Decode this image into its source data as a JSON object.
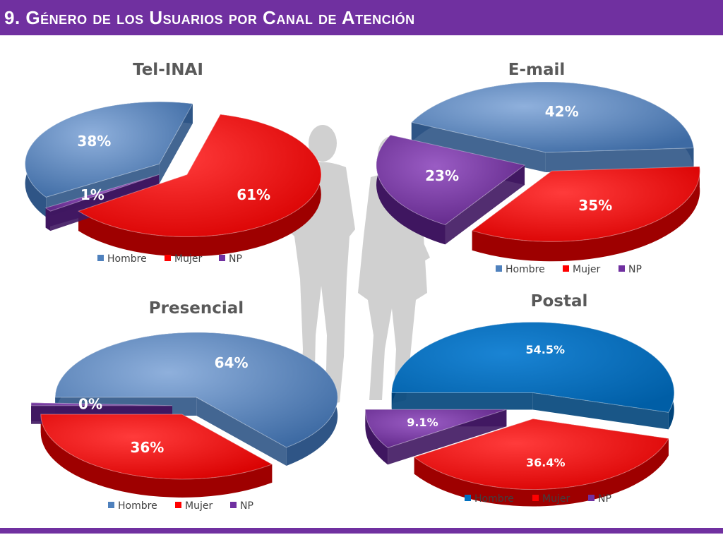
{
  "page": {
    "title": "9. Género de los Usuarios por Canal de Atención"
  },
  "colors": {
    "header": "#7030a0",
    "hombre": "#4f81bd",
    "hombre_postal": "#0070c0",
    "mujer": "#ff0000",
    "np": "#7030a0",
    "silhouette": "#c8c8c8"
  },
  "legend_labels": [
    "Hombre",
    "Mujer",
    "NP"
  ],
  "chart_data": [
    {
      "type": "pie",
      "title": "Tel-INAI",
      "categories": [
        "Hombre",
        "Mujer",
        "NP"
      ],
      "values": [
        38,
        61,
        1
      ],
      "labels": [
        "38%",
        "61%",
        "1%"
      ],
      "legend": "bottom",
      "exploded": true
    },
    {
      "type": "pie",
      "title": "E-mail",
      "categories": [
        "Hombre",
        "Mujer",
        "NP"
      ],
      "values": [
        42,
        35,
        23
      ],
      "labels": [
        "42%",
        "35%",
        "23%"
      ],
      "legend": "bottom",
      "exploded": true
    },
    {
      "type": "pie",
      "title": "Presencial",
      "categories": [
        "Hombre",
        "Mujer",
        "NP"
      ],
      "values": [
        64,
        36,
        0
      ],
      "labels": [
        "64%",
        "36%",
        "0%"
      ],
      "legend": "bottom",
      "exploded": true
    },
    {
      "type": "pie",
      "title": "Postal",
      "categories": [
        "Hombre",
        "Mujer",
        "NP"
      ],
      "values": [
        54.5,
        36.4,
        9.1
      ],
      "labels": [
        "54.5%",
        "36.4%",
        "9.1%"
      ],
      "legend": "bottom",
      "exploded": true
    }
  ]
}
